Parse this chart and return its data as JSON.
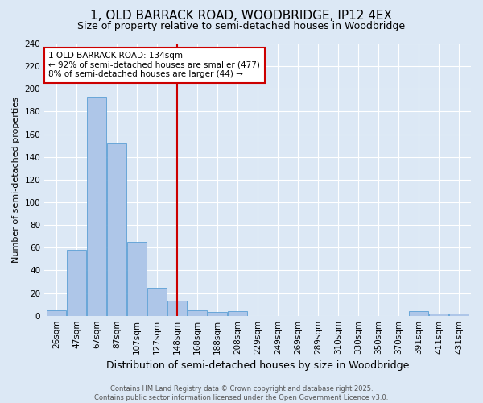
{
  "title": "1, OLD BARRACK ROAD, WOODBRIDGE, IP12 4EX",
  "subtitle": "Size of property relative to semi-detached houses in Woodbridge",
  "xlabel": "Distribution of semi-detached houses by size in Woodbridge",
  "ylabel": "Number of semi-detached properties",
  "property_label": "1 OLD BARRACK ROAD: 134sqm",
  "pct_smaller": 92,
  "count_smaller": 477,
  "pct_larger": 8,
  "count_larger": 44,
  "bin_labels": [
    "26sqm",
    "47sqm",
    "67sqm",
    "87sqm",
    "107sqm",
    "127sqm",
    "148sqm",
    "168sqm",
    "188sqm",
    "208sqm",
    "229sqm",
    "249sqm",
    "269sqm",
    "289sqm",
    "310sqm",
    "330sqm",
    "350sqm",
    "370sqm",
    "391sqm",
    "411sqm",
    "431sqm"
  ],
  "bin_values": [
    5,
    58,
    193,
    152,
    65,
    25,
    13,
    5,
    3,
    4,
    0,
    0,
    0,
    0,
    0,
    0,
    0,
    0,
    4,
    2,
    2
  ],
  "bar_color": "#aec6e8",
  "bar_edge_color": "#5a9fd4",
  "vline_x_index": 6.0,
  "vline_color": "#cc0000",
  "annotation_box_color": "#cc0000",
  "ylim": [
    0,
    240
  ],
  "yticks": [
    0,
    20,
    40,
    60,
    80,
    100,
    120,
    140,
    160,
    180,
    200,
    220,
    240
  ],
  "background_color": "#dce8f5",
  "footer": "Contains HM Land Registry data © Crown copyright and database right 2025.\nContains public sector information licensed under the Open Government Licence v3.0.",
  "title_fontsize": 11,
  "subtitle_fontsize": 9,
  "ylabel_fontsize": 8,
  "xlabel_fontsize": 9,
  "tick_fontsize": 7.5,
  "footer_fontsize": 6,
  "annotation_fontsize": 7.5
}
